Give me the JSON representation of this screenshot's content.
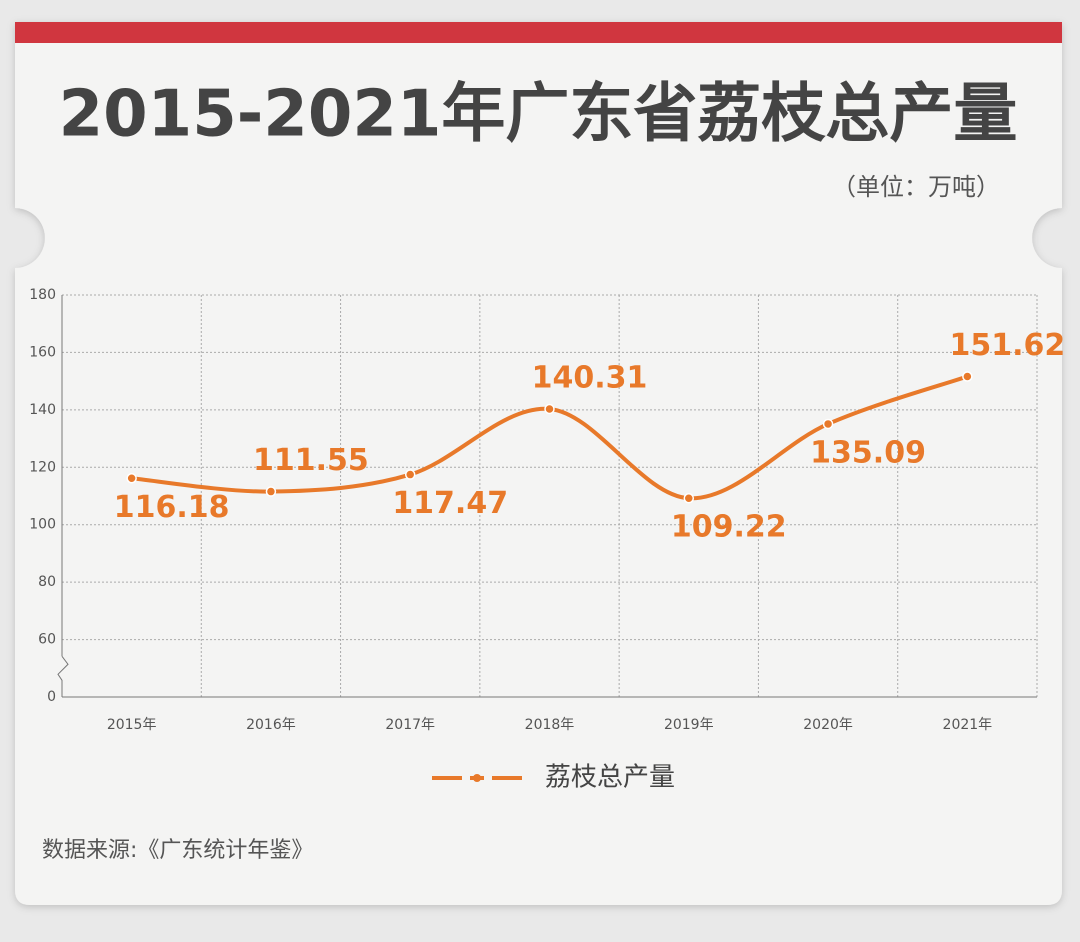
{
  "chart_data": {
    "type": "line",
    "title": "2015-2021年广东省荔枝总产量",
    "subtitle": "（单位：万吨）",
    "source": "数据来源:《广东统计年鉴》",
    "categories": [
      "2015年",
      "2016年",
      "2017年",
      "2018年",
      "2019年",
      "2020年",
      "2021年"
    ],
    "series": [
      {
        "name": "荔枝总产量",
        "color": "#e8792a",
        "values": [
          116.18,
          111.55,
          117.47,
          140.31,
          109.22,
          135.09,
          151.62
        ]
      }
    ],
    "ylim": [
      0,
      180
    ],
    "yticks": [
      0,
      60,
      80,
      100,
      120,
      140,
      160,
      180
    ],
    "axis_break": true,
    "grid": true,
    "smooth": true,
    "legend": "bottom"
  }
}
